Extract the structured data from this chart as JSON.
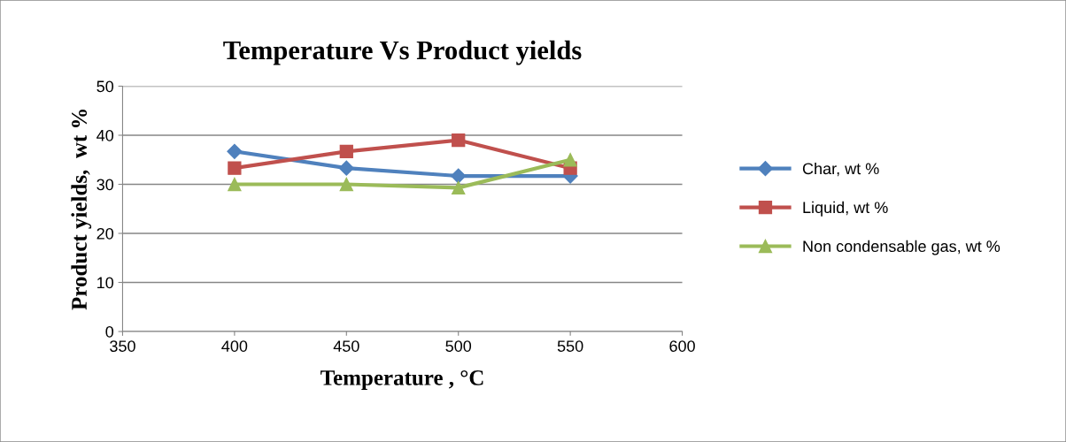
{
  "chart_data": {
    "type": "line",
    "title": "Temperature Vs Product yields",
    "xlabel": "Temperature , °C",
    "ylabel": "Product yields,  wt %",
    "x": [
      400,
      450,
      500,
      550
    ],
    "series": [
      {
        "name": "Char, wt %",
        "color": "#4f81bd",
        "marker": "diamond",
        "values": [
          36.7,
          33.3,
          31.7,
          31.7
        ]
      },
      {
        "name": "Liquid, wt %",
        "color": "#c0504d",
        "marker": "square",
        "values": [
          33.3,
          36.7,
          39.0,
          33.3
        ]
      },
      {
        "name": "Non condensable gas, wt %",
        "color": "#9bbb59",
        "marker": "triangle",
        "values": [
          30.0,
          30.0,
          29.3,
          35.0
        ]
      }
    ],
    "xlim": [
      350,
      600
    ],
    "xticks": [
      350,
      400,
      450,
      500,
      550,
      600
    ],
    "ylim": [
      0,
      50
    ],
    "yticks": [
      0,
      10,
      20,
      30,
      40,
      50
    ],
    "grid": "y",
    "legend": "right",
    "line_style": "solid"
  }
}
